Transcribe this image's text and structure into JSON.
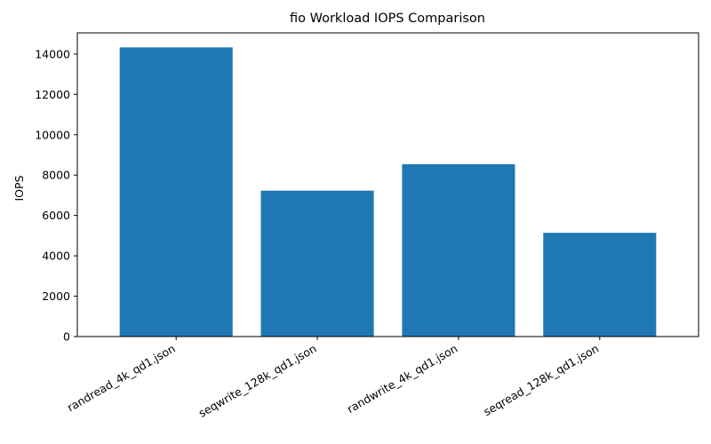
{
  "chart_data": {
    "type": "bar",
    "title": "fio Workload IOPS Comparison",
    "xlabel": "",
    "ylabel": "IOPS",
    "categories": [
      "randread_4k_qd1.json",
      "seqwrite_128k_qd1.json",
      "randwrite_4k_qd1.json",
      "seqread_128k_qd1.json"
    ],
    "values": [
      14330,
      7230,
      8540,
      5140
    ],
    "ylim": [
      0,
      15050
    ],
    "yticks": [
      0,
      2000,
      4000,
      6000,
      8000,
      10000,
      12000,
      14000
    ],
    "grid": false,
    "legend": "none",
    "bar_color": "#1f77b4"
  }
}
